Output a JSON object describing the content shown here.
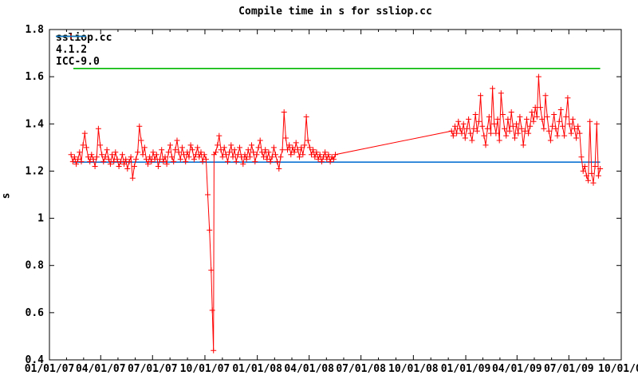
{
  "chart_data": {
    "type": "line",
    "title": "Compile time in s for ssliop.cc",
    "ylabel": "s",
    "grid": false,
    "legend_position": "top-left-inside",
    "x_axis": {
      "unit": "days_since_2007-01-01",
      "range_days": [
        0,
        1004
      ],
      "tick_days": [
        0,
        90,
        181,
        273,
        365,
        456,
        547,
        639,
        731,
        821,
        912,
        1004
      ],
      "tick_labels": [
        "01/01/07",
        "04/01/07",
        "07/01/07",
        "10/01/07",
        "01/01/08",
        "04/01/08",
        "07/01/08",
        "10/01/08",
        "01/01/09",
        "04/01/09",
        "07/01/09",
        "10/01/0"
      ],
      "minor_ticks_per_interval": 2
    },
    "y_axis": {
      "min": 0.4,
      "max": 1.8,
      "ticks": [
        0.4,
        0.6,
        0.8,
        1.0,
        1.2,
        1.4,
        1.6,
        1.8
      ],
      "tick_labels": [
        "0.4",
        "0.6",
        "0.8",
        "1",
        "1.2",
        "1.4",
        "1.6",
        "1.8"
      ]
    },
    "series": [
      {
        "name": "ssliop.cc",
        "color": "#ff0000",
        "style": "linespoints",
        "marker": "plus",
        "points": [
          [
            38,
            1.27
          ],
          [
            41,
            1.24
          ],
          [
            44,
            1.26
          ],
          [
            47,
            1.23
          ],
          [
            50,
            1.25
          ],
          [
            53,
            1.28
          ],
          [
            56,
            1.24
          ],
          [
            59,
            1.31
          ],
          [
            62,
            1.36
          ],
          [
            65,
            1.3
          ],
          [
            68,
            1.26
          ],
          [
            71,
            1.24
          ],
          [
            74,
            1.27
          ],
          [
            77,
            1.25
          ],
          [
            80,
            1.22
          ],
          [
            83,
            1.26
          ],
          [
            86,
            1.38
          ],
          [
            89,
            1.31
          ],
          [
            92,
            1.27
          ],
          [
            95,
            1.24
          ],
          [
            98,
            1.26
          ],
          [
            101,
            1.29
          ],
          [
            104,
            1.25
          ],
          [
            107,
            1.23
          ],
          [
            110,
            1.27
          ],
          [
            113,
            1.24
          ],
          [
            116,
            1.28
          ],
          [
            119,
            1.25
          ],
          [
            122,
            1.22
          ],
          [
            125,
            1.24
          ],
          [
            128,
            1.27
          ],
          [
            131,
            1.23
          ],
          [
            134,
            1.25
          ],
          [
            137,
            1.21
          ],
          [
            140,
            1.24
          ],
          [
            143,
            1.26
          ],
          [
            146,
            1.17
          ],
          [
            149,
            1.22
          ],
          [
            152,
            1.25
          ],
          [
            155,
            1.28
          ],
          [
            158,
            1.39
          ],
          [
            161,
            1.33
          ],
          [
            164,
            1.27
          ],
          [
            167,
            1.3
          ],
          [
            170,
            1.25
          ],
          [
            173,
            1.23
          ],
          [
            176,
            1.26
          ],
          [
            179,
            1.24
          ],
          [
            182,
            1.28
          ],
          [
            185,
            1.25
          ],
          [
            188,
            1.27
          ],
          [
            191,
            1.22
          ],
          [
            194,
            1.25
          ],
          [
            197,
            1.29
          ],
          [
            200,
            1.24
          ],
          [
            203,
            1.26
          ],
          [
            206,
            1.23
          ],
          [
            209,
            1.28
          ],
          [
            212,
            1.31
          ],
          [
            215,
            1.26
          ],
          [
            218,
            1.24
          ],
          [
            221,
            1.29
          ],
          [
            224,
            1.33
          ],
          [
            227,
            1.28
          ],
          [
            230,
            1.25
          ],
          [
            233,
            1.3
          ],
          [
            236,
            1.27
          ],
          [
            239,
            1.24
          ],
          [
            242,
            1.28
          ],
          [
            245,
            1.26
          ],
          [
            248,
            1.31
          ],
          [
            251,
            1.29
          ],
          [
            254,
            1.25
          ],
          [
            257,
            1.27
          ],
          [
            260,
            1.3
          ],
          [
            263,
            1.26
          ],
          [
            266,
            1.28
          ],
          [
            269,
            1.24
          ],
          [
            272,
            1.27
          ],
          [
            275,
            1.25
          ],
          [
            278,
            1.1
          ],
          [
            281,
            0.95
          ],
          [
            284,
            0.78
          ],
          [
            286,
            0.61
          ],
          [
            288,
            0.44
          ],
          [
            289,
            1.27
          ],
          [
            292,
            1.28
          ],
          [
            295,
            1.31
          ],
          [
            298,
            1.35
          ],
          [
            301,
            1.29
          ],
          [
            304,
            1.26
          ],
          [
            307,
            1.3
          ],
          [
            310,
            1.27
          ],
          [
            313,
            1.24
          ],
          [
            316,
            1.28
          ],
          [
            319,
            1.31
          ],
          [
            322,
            1.26
          ],
          [
            325,
            1.29
          ],
          [
            328,
            1.24
          ],
          [
            331,
            1.27
          ],
          [
            334,
            1.3
          ],
          [
            337,
            1.26
          ],
          [
            340,
            1.23
          ],
          [
            343,
            1.27
          ],
          [
            346,
            1.25
          ],
          [
            349,
            1.29
          ],
          [
            352,
            1.26
          ],
          [
            355,
            1.31
          ],
          [
            358,
            1.28
          ],
          [
            361,
            1.24
          ],
          [
            364,
            1.27
          ],
          [
            367,
            1.3
          ],
          [
            370,
            1.33
          ],
          [
            373,
            1.28
          ],
          [
            376,
            1.26
          ],
          [
            379,
            1.29
          ],
          [
            382,
            1.25
          ],
          [
            385,
            1.28
          ],
          [
            388,
            1.24
          ],
          [
            391,
            1.26
          ],
          [
            394,
            1.3
          ],
          [
            397,
            1.27
          ],
          [
            400,
            1.24
          ],
          [
            403,
            1.21
          ],
          [
            406,
            1.26
          ],
          [
            409,
            1.29
          ],
          [
            412,
            1.45
          ],
          [
            415,
            1.34
          ],
          [
            418,
            1.29
          ],
          [
            421,
            1.31
          ],
          [
            424,
            1.27
          ],
          [
            427,
            1.3
          ],
          [
            430,
            1.28
          ],
          [
            433,
            1.32
          ],
          [
            436,
            1.29
          ],
          [
            439,
            1.26
          ],
          [
            442,
            1.3
          ],
          [
            445,
            1.27
          ],
          [
            448,
            1.31
          ],
          [
            451,
            1.43
          ],
          [
            454,
            1.33
          ],
          [
            457,
            1.3
          ],
          [
            460,
            1.27
          ],
          [
            463,
            1.29
          ],
          [
            466,
            1.26
          ],
          [
            469,
            1.28
          ],
          [
            472,
            1.25
          ],
          [
            475,
            1.27
          ],
          [
            478,
            1.24
          ],
          [
            481,
            1.26
          ],
          [
            484,
            1.28
          ],
          [
            487,
            1.25
          ],
          [
            490,
            1.27
          ],
          [
            493,
            1.24
          ],
          [
            496,
            1.26
          ],
          [
            499,
            1.25
          ],
          [
            502,
            1.27
          ],
          [
            706,
            1.37
          ],
          [
            709,
            1.35
          ],
          [
            712,
            1.39
          ],
          [
            715,
            1.36
          ],
          [
            718,
            1.41
          ],
          [
            721,
            1.38
          ],
          [
            724,
            1.36
          ],
          [
            727,
            1.4
          ],
          [
            730,
            1.34
          ],
          [
            733,
            1.38
          ],
          [
            736,
            1.42
          ],
          [
            739,
            1.36
          ],
          [
            742,
            1.33
          ],
          [
            745,
            1.38
          ],
          [
            748,
            1.44
          ],
          [
            751,
            1.37
          ],
          [
            754,
            1.41
          ],
          [
            757,
            1.52
          ],
          [
            760,
            1.39
          ],
          [
            763,
            1.35
          ],
          [
            766,
            1.31
          ],
          [
            769,
            1.38
          ],
          [
            772,
            1.43
          ],
          [
            775,
            1.36
          ],
          [
            778,
            1.55
          ],
          [
            781,
            1.4
          ],
          [
            784,
            1.36
          ],
          [
            787,
            1.42
          ],
          [
            790,
            1.33
          ],
          [
            793,
            1.53
          ],
          [
            796,
            1.44
          ],
          [
            799,
            1.38
          ],
          [
            802,
            1.35
          ],
          [
            805,
            1.42
          ],
          [
            808,
            1.37
          ],
          [
            811,
            1.45
          ],
          [
            814,
            1.39
          ],
          [
            817,
            1.34
          ],
          [
            820,
            1.4
          ],
          [
            823,
            1.36
          ],
          [
            826,
            1.43
          ],
          [
            829,
            1.38
          ],
          [
            832,
            1.31
          ],
          [
            835,
            1.37
          ],
          [
            838,
            1.42
          ],
          [
            841,
            1.36
          ],
          [
            844,
            1.39
          ],
          [
            847,
            1.45
          ],
          [
            850,
            1.41
          ],
          [
            853,
            1.47
          ],
          [
            856,
            1.43
          ],
          [
            859,
            1.6
          ],
          [
            862,
            1.47
          ],
          [
            865,
            1.42
          ],
          [
            868,
            1.38
          ],
          [
            871,
            1.52
          ],
          [
            874,
            1.43
          ],
          [
            877,
            1.37
          ],
          [
            880,
            1.33
          ],
          [
            883,
            1.39
          ],
          [
            886,
            1.44
          ],
          [
            889,
            1.38
          ],
          [
            892,
            1.35
          ],
          [
            895,
            1.41
          ],
          [
            898,
            1.46
          ],
          [
            901,
            1.39
          ],
          [
            904,
            1.35
          ],
          [
            907,
            1.43
          ],
          [
            910,
            1.51
          ],
          [
            913,
            1.4
          ],
          [
            916,
            1.36
          ],
          [
            919,
            1.42
          ],
          [
            922,
            1.38
          ],
          [
            925,
            1.34
          ],
          [
            928,
            1.39
          ],
          [
            931,
            1.36
          ],
          [
            934,
            1.26
          ],
          [
            937,
            1.2
          ],
          [
            940,
            1.22
          ],
          [
            943,
            1.18
          ],
          [
            946,
            1.16
          ],
          [
            949,
            1.41
          ],
          [
            952,
            1.19
          ],
          [
            955,
            1.15
          ],
          [
            958,
            1.22
          ],
          [
            961,
            1.4
          ],
          [
            964,
            1.18
          ],
          [
            967,
            1.21
          ]
        ]
      },
      {
        "name": "4.1.2",
        "color": "#00b800",
        "style": "line",
        "constant_value": 1.635,
        "span_days": [
          42,
          967
        ]
      },
      {
        "name": "ICC-9.0",
        "color": "#0d73d3",
        "style": "line",
        "constant_value": 1.238,
        "span_days": [
          42,
          967
        ]
      }
    ]
  }
}
